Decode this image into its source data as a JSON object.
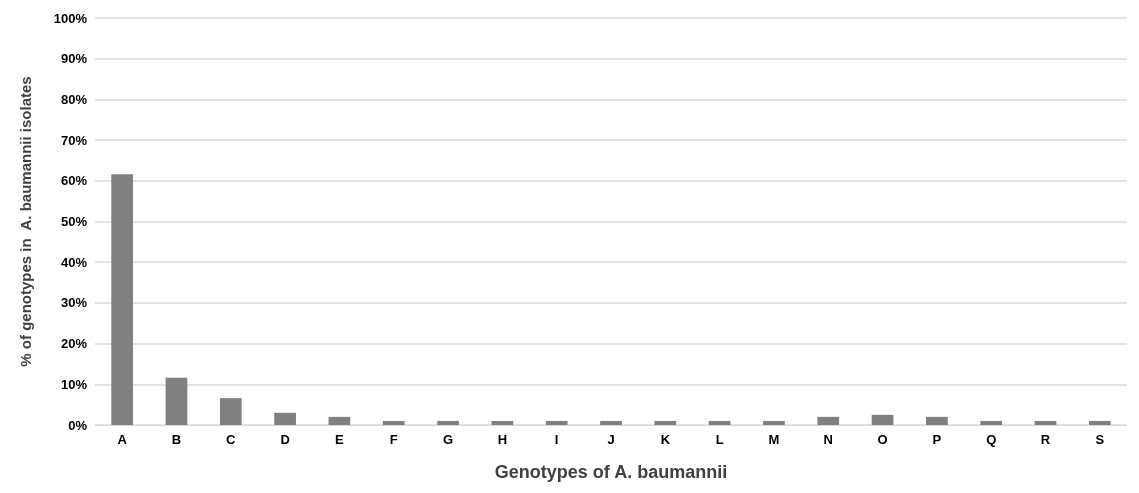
{
  "chart_data": {
    "type": "bar",
    "xlabel": "Genotypes of A. baumannii",
    "ylabel": "% of genotypes in  A. baumannii isolates",
    "categories": [
      "A",
      "B",
      "C",
      "D",
      "E",
      "F",
      "G",
      "H",
      "I",
      "J",
      "K",
      "L",
      "M",
      "N",
      "O",
      "P",
      "Q",
      "R",
      "S"
    ],
    "values": [
      61.6,
      11.6,
      6.6,
      3.0,
      2.0,
      1.0,
      1.0,
      1.0,
      1.0,
      1.0,
      1.0,
      1.0,
      1.0,
      2.0,
      2.5,
      2.0,
      1.0,
      1.0,
      1.0
    ],
    "color": "#808080",
    "ylim": [
      0,
      100
    ],
    "yticks": [
      {
        "value": 0,
        "label": "0%"
      },
      {
        "value": 10,
        "label": "10%"
      },
      {
        "value": 20,
        "label": "20%"
      },
      {
        "value": 30,
        "label": "30%"
      },
      {
        "value": 40,
        "label": "40%"
      },
      {
        "value": 50,
        "label": "50%"
      },
      {
        "value": 60,
        "label": "60%"
      },
      {
        "value": 70,
        "label": "70%"
      },
      {
        "value": 80,
        "label": "80%"
      },
      {
        "value": 90,
        "label": "90%"
      },
      {
        "value": 100,
        "label": "100%"
      }
    ],
    "grid": "y"
  }
}
